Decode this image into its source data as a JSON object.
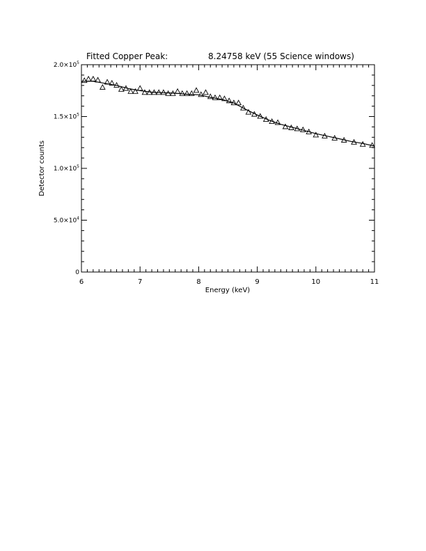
{
  "chart_data": {
    "type": "scatter",
    "title_left": "Fitted Copper Peak:",
    "title_right": "8.24758 keV (55 Science windows)",
    "xlabel": "Energy (keV)",
    "ylabel": "Detector counts",
    "xlim": [
      6,
      11
    ],
    "ylim": [
      0,
      200000
    ],
    "x_ticks": [
      {
        "value": 6,
        "label": "6"
      },
      {
        "value": 7,
        "label": "7"
      },
      {
        "value": 8,
        "label": "8"
      },
      {
        "value": 9,
        "label": "9"
      },
      {
        "value": 10,
        "label": "10"
      },
      {
        "value": 11,
        "label": "11"
      }
    ],
    "y_ticks": [
      {
        "value": 0,
        "mant": "0",
        "exp": ""
      },
      {
        "value": 50000,
        "mant": "5.0×10",
        "exp": "4"
      },
      {
        "value": 100000,
        "mant": "1.0×10",
        "exp": "5"
      },
      {
        "value": 150000,
        "mant": "1.5×10",
        "exp": "5"
      },
      {
        "value": 200000,
        "mant": "2.0×10",
        "exp": "5"
      }
    ],
    "grid": false,
    "series": [
      {
        "marker": "triangle",
        "x": [
          6.05,
          6.12,
          6.2,
          6.28,
          6.36,
          6.44,
          6.52,
          6.6,
          6.68,
          6.76,
          6.84,
          6.92,
          7.0,
          7.08,
          7.16,
          7.24,
          7.32,
          7.4,
          7.48,
          7.56,
          7.64,
          7.72,
          7.8,
          7.88,
          7.96,
          8.04,
          8.12,
          8.2,
          8.28,
          8.36,
          8.44,
          8.52,
          8.6,
          8.68,
          8.76,
          8.85,
          8.95,
          9.05,
          9.15,
          9.25,
          9.35,
          9.48,
          9.58,
          9.68,
          9.78,
          9.88,
          10.0,
          10.15,
          10.32,
          10.48,
          10.65,
          10.8,
          10.96
        ],
        "y": [
          184500,
          186000,
          186000,
          185000,
          178000,
          183000,
          182000,
          180000,
          176000,
          177000,
          174000,
          174000,
          177000,
          173000,
          173000,
          173000,
          173000,
          173000,
          172000,
          172000,
          174000,
          172000,
          172000,
          172000,
          175000,
          171000,
          173000,
          169000,
          168000,
          168000,
          167000,
          165000,
          163000,
          163000,
          158000,
          154000,
          152000,
          150000,
          147000,
          145000,
          144000,
          140000,
          139000,
          138000,
          137000,
          135000,
          132000,
          131000,
          129000,
          127000,
          125000,
          123000,
          122000
        ]
      },
      {
        "style": "line",
        "x": [
          6.0,
          6.2,
          6.4,
          6.6,
          6.8,
          7.0,
          7.2,
          7.4,
          7.6,
          7.8,
          8.0,
          8.2,
          8.4,
          8.6,
          8.8,
          9.0,
          9.2,
          9.4,
          9.6,
          9.8,
          10.0,
          10.2,
          10.4,
          10.6,
          10.8,
          11.0
        ],
        "y": [
          184000,
          184000,
          182000,
          180000,
          177000,
          175000,
          173500,
          173000,
          172500,
          171500,
          171000,
          168500,
          166500,
          163000,
          157000,
          151500,
          146500,
          142500,
          139500,
          136500,
          133500,
          131000,
          128500,
          126000,
          124000,
          121500
        ]
      }
    ]
  }
}
